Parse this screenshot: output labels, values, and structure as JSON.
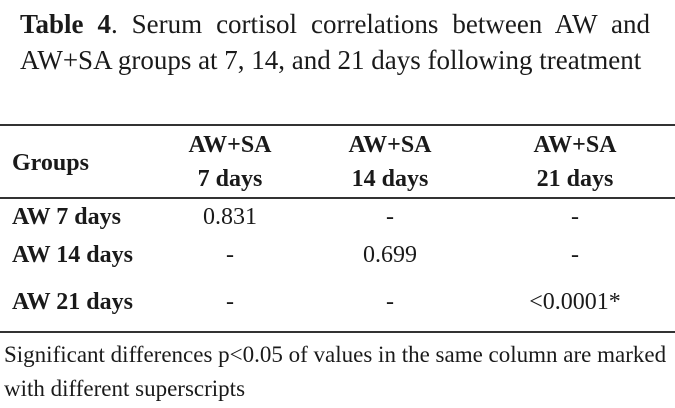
{
  "caption": {
    "label": "Table 4",
    "text": ". Serum cortisol correlations between AW and AW+SA groups at 7, 14, and 21 days following treatment"
  },
  "table": {
    "row_header": "Groups",
    "columns": [
      {
        "line1": "AW+SA",
        "line2": "7 days"
      },
      {
        "line1": "AW+SA",
        "line2": "14 days"
      },
      {
        "line1": "AW+SA",
        "line2": "21 days"
      }
    ],
    "rows": [
      {
        "label": "AW 7 days",
        "cells": [
          "0.831",
          "-",
          "-"
        ]
      },
      {
        "label": "AW 14 days",
        "cells": [
          "-",
          "0.699",
          "-"
        ]
      },
      {
        "label": "AW 21 days",
        "cells": [
          "-",
          "-",
          "<0.0001*"
        ]
      }
    ]
  },
  "footnote": "Significant differences p<0.05 of values in the same column are marked with different superscripts"
}
